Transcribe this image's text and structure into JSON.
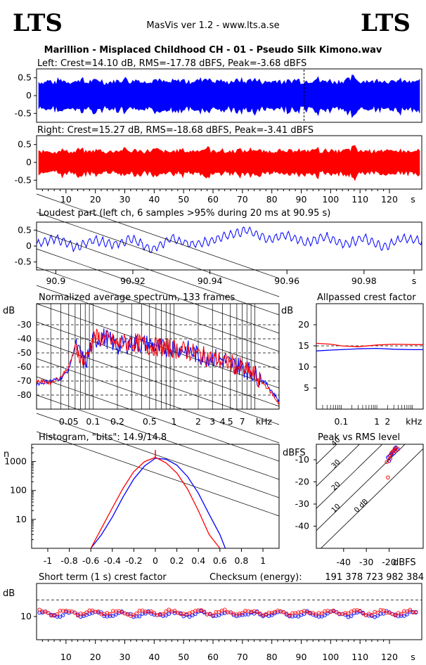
{
  "header": {
    "logo_left": "LTS",
    "logo_right": "LTS",
    "app_title": "MasVis ver 1.2 - www.lts.a.se",
    "file_title": "Marillion - Misplaced Childhood CH - 01 - Pseudo Silk Kimono.wav"
  },
  "colors": {
    "left": "#0000ff",
    "right": "#ff0000",
    "grid": "#000000"
  },
  "chart_data": [
    {
      "id": "left-waveform",
      "type": "area",
      "title": "Left: Crest=14.10 dB, RMS=-17.78 dBFS, Peak=-3.68 dBFS",
      "y_ticks": [
        "0.5",
        "0",
        "-0.5"
      ],
      "ylim": [
        -0.75,
        0.75
      ],
      "xlim": [
        0,
        131
      ],
      "marker_x": 90.95,
      "envelope": [
        0.38,
        0.42,
        0.36,
        0.44,
        0.4,
        0.38,
        0.45,
        0.37,
        0.41,
        0.43,
        0.36,
        0.39,
        0.42,
        0.47,
        0.4,
        0.44,
        0.38,
        0.42,
        0.46,
        0.39,
        0.37,
        0.41,
        0.44,
        0.38,
        0.42,
        0.45,
        0.5,
        0.4,
        0.43,
        0.37,
        0.41,
        0.44,
        0.39,
        0.46,
        0.42,
        0.38,
        0.4,
        0.43,
        0.37,
        0.41,
        0.45,
        0.39,
        0.42,
        0.48,
        0.4,
        0.43,
        0.38,
        0.41,
        0.44,
        0.52,
        0.4,
        0.42,
        0.39,
        0.45,
        0.41,
        0.38,
        0.43,
        0.4,
        0.37,
        0.42
      ]
    },
    {
      "id": "right-waveform",
      "type": "area",
      "title": "Right: Crest=15.27 dB, RMS=-18.68 dBFS, Peak=-3.41 dBFS",
      "y_ticks": [
        "0.5",
        "0",
        "-0.5"
      ],
      "ylim": [
        -0.75,
        0.75
      ],
      "xlim": [
        0,
        131
      ],
      "x_ticks": [
        "10",
        "20",
        "30",
        "40",
        "50",
        "60",
        "70",
        "80",
        "90",
        "100",
        "110",
        "120",
        "s"
      ],
      "envelope": [
        0.3,
        0.33,
        0.28,
        0.35,
        0.31,
        0.29,
        0.36,
        0.3,
        0.32,
        0.34,
        0.29,
        0.31,
        0.33,
        0.37,
        0.31,
        0.34,
        0.3,
        0.33,
        0.36,
        0.31,
        0.29,
        0.32,
        0.35,
        0.3,
        0.33,
        0.36,
        0.4,
        0.31,
        0.34,
        0.29,
        0.32,
        0.35,
        0.31,
        0.37,
        0.33,
        0.3,
        0.31,
        0.34,
        0.29,
        0.32,
        0.36,
        0.31,
        0.33,
        0.38,
        0.31,
        0.34,
        0.3,
        0.32,
        0.35,
        0.42,
        0.31,
        0.33,
        0.31,
        0.36,
        0.32,
        0.3,
        0.34,
        0.31,
        0.29,
        0.33
      ]
    },
    {
      "id": "loudest-part",
      "type": "line",
      "title": "Loudest part (left  ch, 6 samples >95% during 20 ms at 90.95 s)",
      "y_ticks": [
        "0.5",
        "0",
        "-0.5"
      ],
      "ylim": [
        -0.75,
        0.75
      ],
      "xlim": [
        90.895,
        90.995
      ],
      "x_ticks": [
        "90.9",
        "90.92",
        "90.94",
        "90.96",
        "90.98",
        "s"
      ],
      "x": [
        90.895,
        90.9,
        90.905,
        90.91,
        90.915,
        90.92,
        90.925,
        90.93,
        90.935,
        90.94,
        90.945,
        90.95,
        90.955,
        90.96,
        90.965,
        90.97,
        90.975,
        90.98,
        90.985,
        90.99,
        90.995
      ],
      "y": [
        0.05,
        0.25,
        -0.05,
        0.2,
        0.05,
        0.22,
        -0.12,
        0.25,
        0.05,
        0.15,
        0.35,
        0.5,
        0.2,
        0.35,
        0.1,
        0.3,
        0.05,
        0.25,
        -0.05,
        0.25,
        0.15
      ]
    },
    {
      "id": "avg-spectrum",
      "type": "line",
      "title": "Normalized average spectrum, 133 frames",
      "ylabel": "dB",
      "xlabel": "kHz",
      "y_ticks": [
        "-30",
        "-40",
        "-50",
        "-60",
        "-70",
        "-80"
      ],
      "x_ticks": [
        "0.05",
        "0.1",
        "0.2",
        "0.5",
        "1",
        "2",
        "3",
        "4",
        "5",
        "7",
        "kHz"
      ],
      "ylim": [
        -90,
        -15
      ],
      "xlim_khz": [
        0.02,
        20
      ],
      "series": [
        {
          "color": "blue",
          "x": [
            0.02,
            0.03,
            0.04,
            0.05,
            0.06,
            0.08,
            0.1,
            0.13,
            0.2,
            0.3,
            0.5,
            0.7,
            1,
            1.5,
            2,
            3,
            4,
            5,
            7,
            10,
            14,
            20
          ],
          "y": [
            -72,
            -70,
            -68,
            -62,
            -45,
            -58,
            -42,
            -38,
            -45,
            -43,
            -44,
            -47,
            -46,
            -48,
            -52,
            -53,
            -55,
            -58,
            -60,
            -65,
            -72,
            -84
          ]
        },
        {
          "color": "red",
          "x": [
            0.02,
            0.03,
            0.04,
            0.05,
            0.06,
            0.08,
            0.1,
            0.13,
            0.2,
            0.3,
            0.5,
            0.7,
            1,
            1.5,
            2,
            3,
            4,
            5,
            7,
            10,
            14,
            20
          ],
          "y": [
            -70,
            -71,
            -67,
            -60,
            -46,
            -56,
            -40,
            -39,
            -44,
            -42,
            -45,
            -46,
            -47,
            -49,
            -51,
            -54,
            -56,
            -57,
            -61,
            -66,
            -74,
            -86
          ]
        }
      ]
    },
    {
      "id": "allpassed-crest",
      "type": "line",
      "title": "Allpassed crest factor",
      "ylabel": "dB",
      "xlabel": "kHz",
      "y_ticks": [
        "20",
        "15",
        "10",
        "5"
      ],
      "x_ticks": [
        "0.1",
        "1",
        "2",
        "kHz"
      ],
      "ylim": [
        0,
        25
      ],
      "series": [
        {
          "color": "blue",
          "x": [
            0.02,
            0.05,
            0.1,
            0.3,
            1,
            3,
            10,
            20
          ],
          "y": [
            13.8,
            14.0,
            14.1,
            14.3,
            14.4,
            14.2,
            14.1,
            14.1
          ]
        },
        {
          "color": "red",
          "x": [
            0.02,
            0.05,
            0.1,
            0.3,
            1,
            3,
            10,
            20
          ],
          "y": [
            15.6,
            15.4,
            15.0,
            14.8,
            15.2,
            15.4,
            15.3,
            15.3
          ]
        }
      ]
    },
    {
      "id": "histogram",
      "type": "line",
      "title": "Histogram, \"bits\": 14.9/14.8",
      "ylabel": "n",
      "y_ticks": [
        "1000",
        "100",
        "10"
      ],
      "x_ticks": [
        "-1",
        "-0.8",
        "-0.6",
        "-0.4",
        "-0.2",
        "0",
        "0.2",
        "0.4",
        "0.6",
        "0.8",
        "1"
      ],
      "xlim": [
        -1.15,
        1.15
      ],
      "series": [
        {
          "color": "blue",
          "x": [
            -0.6,
            -0.5,
            -0.4,
            -0.3,
            -0.2,
            -0.1,
            0,
            0.1,
            0.2,
            0.3,
            0.4,
            0.5,
            0.6,
            0.65
          ],
          "y": [
            1,
            3,
            12,
            60,
            250,
            700,
            1300,
            1200,
            750,
            300,
            80,
            15,
            3,
            1
          ]
        },
        {
          "color": "red",
          "x": [
            -0.6,
            -0.5,
            -0.4,
            -0.3,
            -0.2,
            -0.1,
            0,
            0.1,
            0.2,
            0.3,
            0.4,
            0.5,
            0.6
          ],
          "y": [
            1,
            5,
            25,
            120,
            450,
            1000,
            1400,
            900,
            400,
            110,
            20,
            3,
            1
          ]
        }
      ]
    },
    {
      "id": "peak-vs-rms",
      "type": "scatter",
      "title": "Peak vs RMS level",
      "ylabel": "dBFS",
      "xlabel": "dBFS",
      "y_ticks": [
        "-10",
        "-20",
        "-30",
        "-40"
      ],
      "x_ticks": [
        "-40",
        "-30",
        "-20"
      ],
      "diagonal_labels": [
        "40",
        "30",
        "20",
        "10",
        "0 dB"
      ],
      "series": [
        {
          "color": "blue",
          "x": [
            -20.5,
            -19,
            -18,
            -17.5,
            -19.5,
            -18.5,
            -17,
            -20,
            -16.5,
            -18
          ],
          "y": [
            -9,
            -7.5,
            -6,
            -5,
            -8,
            -6.5,
            -4.5,
            -10.5,
            -5.5,
            -7
          ]
        },
        {
          "color": "red",
          "x": [
            -20,
            -18.5,
            -17.5,
            -19,
            -17,
            -21,
            -18,
            -16,
            -19.5,
            -20.5
          ],
          "y": [
            -8.5,
            -6.5,
            -5.5,
            -7,
            -4.8,
            -11,
            -6,
            -5.2,
            -9.5,
            -18
          ]
        }
      ]
    },
    {
      "id": "short-term-crest",
      "type": "scatter",
      "title": "Short term (1 s) crest factor",
      "checksum_label": "Checksum (energy):",
      "checksum_value": "191 378 723 982 384",
      "ylabel": "dB",
      "y_ticks": [
        "10"
      ],
      "x_ticks": [
        "10",
        "20",
        "30",
        "40",
        "50",
        "60",
        "70",
        "80",
        "90",
        "100",
        "110",
        "120",
        "s"
      ],
      "xlim": [
        0,
        131
      ],
      "ylim": [
        3,
        20
      ]
    }
  ]
}
